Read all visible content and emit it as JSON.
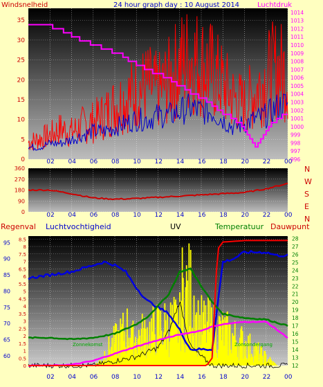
{
  "colors": {
    "background": "#ffffc0",
    "wind": "#ff0000",
    "gust": "#0000cc",
    "pressure": "#ff00ff",
    "rain": "#ff0000",
    "humidity": "#0000dd",
    "uv": "#000000",
    "temperature": "#008000",
    "dewpoint": "#ff00ff",
    "solar": "#ffff00",
    "heading": "#cc0000",
    "label": "#0000cc"
  },
  "header": {
    "left": "Windsnelheid",
    "center": "24 hour graph day : 10 August 2014",
    "right": "Luchtdruk"
  },
  "x_ticks": [
    "02",
    "04",
    "06",
    "08",
    "10",
    "12",
    "14",
    "16",
    "18",
    "20",
    "22",
    "00"
  ],
  "panel1": {
    "left_axis": [
      "0",
      "5",
      "10",
      "15",
      "20",
      "25",
      "30",
      "35"
    ],
    "right_axis": [
      "996",
      "997",
      "998",
      "999",
      "1000",
      "1001",
      "1002",
      "1003",
      "1004",
      "1005",
      "1006",
      "1007",
      "1008",
      "1009",
      "1010",
      "1011",
      "1012",
      "1013",
      "1014"
    ]
  },
  "panel2": {
    "left_axis": [
      "0",
      "90",
      "180",
      "270",
      "360"
    ],
    "compass": [
      "N",
      "W",
      "S",
      "E",
      "N"
    ]
  },
  "panel3": {
    "labels": {
      "rain": "Regenval",
      "humidity": "Luchtvochtigheid",
      "uv": "UV",
      "temperature": "Temperatuur",
      "dewpoint": "Dauwpunt"
    },
    "rain_axis": [
      "0",
      "0.5",
      "1",
      "1.5",
      "2",
      "2.5",
      "3",
      "3.5",
      "4",
      "4.5",
      "5",
      "5.5",
      "6",
      "6.5",
      "7",
      "7.5",
      "8",
      "8.5"
    ],
    "humidity_axis": [
      "60",
      "65",
      "70",
      "75",
      "80",
      "85",
      "90",
      "95"
    ],
    "temp_axis": [
      "12",
      "13",
      "14",
      "15",
      "16",
      "17",
      "18",
      "19",
      "20",
      "21",
      "22",
      "23",
      "24",
      "25",
      "26",
      "27",
      "28"
    ],
    "annotation_left": "Zonnekomst",
    "annotation_right": "Zonsondergang"
  },
  "chart_data": [
    {
      "type": "line",
      "title": "24 hour graph day : 10 August 2014",
      "xlabel": "",
      "x_ticks": [
        "02",
        "04",
        "06",
        "08",
        "10",
        "12",
        "14",
        "16",
        "18",
        "20",
        "22",
        "00"
      ],
      "ylabel_left": "Windsnelheid",
      "ylim_left": [
        0,
        38
      ],
      "ylabel_right": "Luchtdruk",
      "ylim_right": [
        996,
        1014.5
      ],
      "series": [
        {
          "name": "Windsnelheid",
          "axis": "left",
          "x": [
            0,
            1,
            2,
            3,
            4,
            5,
            6,
            7,
            8,
            9,
            10,
            11,
            12,
            13,
            14,
            15,
            16,
            17,
            18,
            19,
            20,
            21,
            22,
            23,
            24
          ],
          "values": [
            5,
            6,
            7,
            9,
            8,
            10,
            11,
            13,
            16,
            18,
            20,
            22,
            20,
            23,
            28,
            30,
            28,
            26,
            22,
            18,
            16,
            20,
            24,
            27,
            25
          ]
        },
        {
          "name": "",
          "axis": "left",
          "x": [
            0,
            1,
            2,
            3,
            4,
            5,
            6,
            7,
            8,
            9,
            10,
            11,
            12,
            13,
            14,
            15,
            16,
            17,
            18,
            19,
            20,
            21,
            22,
            23,
            24
          ],
          "values": [
            3,
            3,
            4,
            4,
            5,
            6,
            7,
            7,
            8,
            9,
            10,
            10,
            11,
            11,
            12,
            13,
            12,
            12,
            10,
            8,
            9,
            10,
            11,
            13,
            14
          ]
        },
        {
          "name": "Luchtdruk",
          "axis": "right",
          "x": [
            0,
            1,
            2,
            3,
            4,
            5,
            6,
            7,
            8,
            9,
            10,
            11,
            12,
            13,
            14,
            15,
            16,
            17,
            18,
            19,
            20,
            21,
            22,
            23,
            24
          ],
          "values": [
            1012.7,
            1012.5,
            1012.3,
            1011.8,
            1011.2,
            1010.5,
            1010.0,
            1009.6,
            1009.1,
            1008.4,
            1007.7,
            1007.0,
            1006.4,
            1005.8,
            1005.0,
            1004.2,
            1003.5,
            1002.5,
            1001.7,
            1001.0,
            999.5,
            997.5,
            999.5,
            1001.0,
            1001.7
          ]
        }
      ]
    },
    {
      "type": "line",
      "title": "",
      "ylabel_left": "",
      "ylim": [
        0,
        360
      ],
      "x_ticks": [
        "02",
        "04",
        "06",
        "08",
        "10",
        "12",
        "14",
        "16",
        "18",
        "20",
        "22",
        "00"
      ],
      "series": [
        {
          "name": "",
          "x": [
            0,
            2,
            4,
            6,
            8,
            10,
            12,
            14,
            16,
            18,
            20,
            22,
            24
          ],
          "values": [
            180,
            180,
            150,
            115,
            105,
            110,
            120,
            130,
            140,
            150,
            160,
            190,
            235
          ]
        }
      ]
    },
    {
      "type": "line",
      "title": "",
      "x_ticks": [
        "02",
        "04",
        "06",
        "08",
        "10",
        "12",
        "14",
        "16",
        "18",
        "20",
        "22",
        "00"
      ],
      "series": [
        {
          "name": "Luchtvochtigheid",
          "axis": "humidity",
          "ylim": [
            57,
            97
          ],
          "x": [
            0,
            2,
            4,
            5,
            6,
            7,
            8,
            9,
            10,
            11,
            12,
            13,
            14,
            15,
            16,
            17,
            18,
            19,
            20,
            21,
            22,
            23,
            24
          ],
          "values": [
            84,
            85,
            86,
            87,
            88,
            89,
            88,
            86,
            81,
            77,
            75,
            73,
            68,
            62,
            62,
            62,
            89,
            90,
            92,
            92,
            92,
            91,
            91
          ]
        },
        {
          "name": "UV",
          "axis": "rain",
          "ylim": [
            0,
            8.7
          ],
          "x": [
            0,
            6,
            8,
            10,
            11,
            12,
            13,
            14,
            15,
            16,
            17,
            18,
            24
          ],
          "values": [
            0,
            0,
            0.3,
            0.6,
            0.9,
            1.2,
            2.3,
            4.3,
            1.3,
            0.6,
            0,
            0,
            0
          ]
        },
        {
          "name": "Temperatuur",
          "axis": "temp",
          "ylim": [
            12,
            28.3
          ],
          "x": [
            0,
            2,
            4,
            6,
            8,
            10,
            11,
            12,
            13,
            14,
            15,
            16,
            17,
            18,
            20,
            22,
            23,
            24
          ],
          "values": [
            15.5,
            15.5,
            15.3,
            15.5,
            16.0,
            17.2,
            18.1,
            19.5,
            21.0,
            23.8,
            24.2,
            22.0,
            20.0,
            18.5,
            18.0,
            17.8,
            17.4,
            17.0
          ]
        },
        {
          "name": "Dauwpunt",
          "axis": "temp",
          "ylim": [
            12,
            28.3
          ],
          "x": [
            0,
            2,
            4,
            6,
            8,
            10,
            12,
            14,
            16,
            17,
            18,
            20,
            22,
            23,
            24
          ],
          "values": [
            12.0,
            12.0,
            12.1,
            12.6,
            13.5,
            14.4,
            15.2,
            15.9,
            16.4,
            16.9,
            17.2,
            17.5,
            17.5,
            16.5,
            15.5
          ]
        },
        {
          "name": "Regenval",
          "axis": "rain",
          "ylim": [
            0,
            8.7
          ],
          "x": [
            0,
            16.5,
            17,
            17.5,
            18,
            20,
            22,
            23,
            24
          ],
          "values": [
            0,
            0,
            0.5,
            7.8,
            8.3,
            8.4,
            8.4,
            8.4,
            8.4
          ]
        }
      ]
    }
  ]
}
